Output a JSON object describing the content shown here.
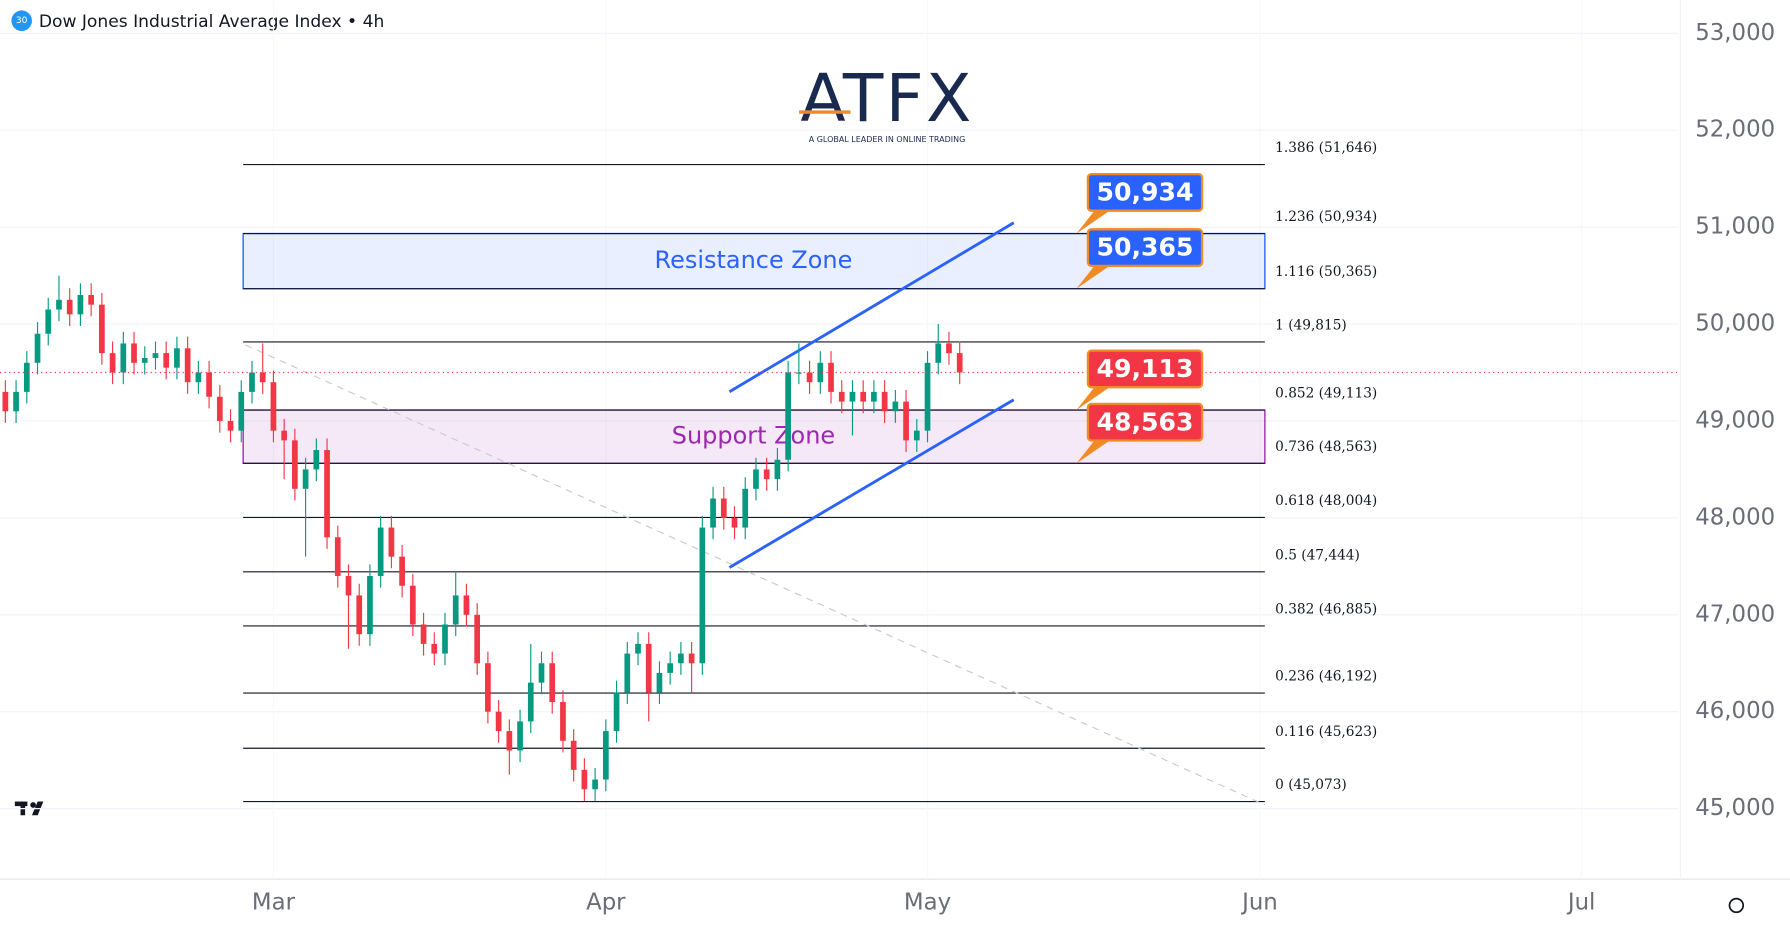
{
  "chart_data": {
    "type": "candlestick",
    "title": "Dow Jones Industrial Average Index • 4h",
    "badge": "30",
    "logo": "ATFX",
    "logo_tagline": "A GLOBAL LEADER IN ONLINE TRADING",
    "up_color": "#089981",
    "down_color": "#f23645",
    "xlim": [
      -25.5,
      131
    ],
    "xticks": [
      {
        "value": 0,
        "label": "Mar"
      },
      {
        "value": 31,
        "label": "Apr"
      },
      {
        "value": 61,
        "label": "May"
      },
      {
        "value": 92,
        "label": "Jun"
      },
      {
        "value": 122,
        "label": "Jul"
      }
    ],
    "ylim": [
      44272,
      53342
    ],
    "yticks": [
      {
        "value": 45000,
        "label": "45,000"
      },
      {
        "value": 46000,
        "label": "46,000"
      },
      {
        "value": 47000,
        "label": "47,000"
      },
      {
        "value": 48000,
        "label": "48,000"
      },
      {
        "value": 49000,
        "label": "49,000"
      },
      {
        "value": 50000,
        "label": "50,000"
      },
      {
        "value": 51000,
        "label": "51,000"
      },
      {
        "value": 52000,
        "label": "52,000"
      },
      {
        "value": 53000,
        "label": "53,000"
      }
    ],
    "grid": true,
    "x": [
      -25,
      -24,
      -23,
      -22,
      -21,
      -20,
      -19,
      -18,
      -17,
      -16,
      -15,
      -14,
      -13,
      -12,
      -11,
      -10,
      -9,
      -8,
      -7,
      -6,
      -5,
      -4,
      -3,
      -2,
      -1,
      0,
      1,
      2,
      3,
      4,
      5,
      6,
      7,
      8,
      9,
      10,
      11,
      12,
      13,
      14,
      15,
      16,
      17,
      18,
      19,
      20,
      21,
      22,
      23,
      24,
      25,
      26,
      27,
      28,
      29,
      30,
      31,
      32,
      33,
      34,
      35,
      36,
      37,
      38,
      39,
      40,
      41,
      42,
      43,
      44,
      45,
      46,
      47,
      48,
      49,
      50,
      51,
      52,
      53,
      54,
      55,
      56,
      57,
      58,
      59,
      60,
      61,
      62,
      63,
      64
    ],
    "open": [
      49300,
      49100,
      49300,
      49600,
      49900,
      50150,
      50250,
      50100,
      50300,
      50200,
      49700,
      49500,
      49800,
      49600,
      49650,
      49700,
      49550,
      49750,
      49400,
      49500,
      49250,
      49000,
      48900,
      49300,
      49500,
      49400,
      48900,
      48800,
      48300,
      48500,
      48700,
      47800,
      47400,
      47200,
      46800,
      47400,
      47900,
      47600,
      47300,
      46900,
      46700,
      46600,
      46900,
      47200,
      47000,
      46500,
      46000,
      45800,
      45600,
      45900,
      46300,
      46500,
      46100,
      45700,
      45400,
      45200,
      45300,
      45800,
      46200,
      46600,
      46700,
      46200,
      46400,
      46500,
      46600,
      46500,
      47900,
      48200,
      48000,
      47900,
      48300,
      48500,
      48400,
      48600,
      49500,
      49500,
      49400,
      49600,
      49300,
      49200,
      49300,
      49200,
      49300,
      49100,
      49200,
      48800,
      48900,
      49600,
      49800,
      49700
    ],
    "high": [
      49420,
      49420,
      49720,
      50020,
      50270,
      50500,
      50370,
      50420,
      50420,
      50320,
      49820,
      49920,
      49920,
      49770,
      49820,
      49820,
      49870,
      49870,
      49620,
      49620,
      49370,
      49120,
      49420,
      49620,
      49800,
      49520,
      49020,
      48920,
      48620,
      48820,
      48820,
      47920,
      47520,
      47320,
      47520,
      48020,
      48020,
      47720,
      47420,
      47020,
      46820,
      47020,
      47450,
      47320,
      47120,
      46620,
      46120,
      45920,
      46020,
      46700,
      46620,
      46620,
      46220,
      45820,
      45520,
      45420,
      45920,
      46320,
      46720,
      46820,
      46820,
      46520,
      46620,
      46720,
      46720,
      48020,
      48320,
      48320,
      48120,
      48420,
      48620,
      48620,
      48720,
      49620,
      49800,
      49620,
      49720,
      49720,
      49420,
      49420,
      49420,
      49420,
      49420,
      49320,
      49320,
      49020,
      49720,
      50000,
      49920,
      49820
    ],
    "low": [
      48980,
      48980,
      49180,
      49480,
      49780,
      50030,
      49980,
      49980,
      50080,
      49580,
      49380,
      49380,
      49480,
      49480,
      49530,
      49430,
      49430,
      49280,
      49280,
      49130,
      48880,
      48780,
      48780,
      49180,
      49280,
      48780,
      48400,
      48180,
      47600,
      48380,
      47680,
      47280,
      46650,
      46680,
      46680,
      47280,
      47480,
      47180,
      46780,
      46580,
      46480,
      46480,
      46780,
      46880,
      46380,
      45880,
      45680,
      45350,
      45480,
      45780,
      46180,
      45980,
      45580,
      45280,
      45080,
      45080,
      45180,
      45680,
      46080,
      46480,
      45900,
      46080,
      46280,
      46380,
      46200,
      46380,
      47780,
      47880,
      47780,
      47780,
      48180,
      48280,
      48280,
      48480,
      49380,
      49280,
      49280,
      49180,
      49080,
      48850,
      49080,
      49080,
      48980,
      48980,
      48680,
      48680,
      48780,
      49480,
      49580,
      49380
    ],
    "close": [
      49100,
      49300,
      49600,
      49900,
      50150,
      50250,
      50100,
      50300,
      50200,
      49700,
      49500,
      49800,
      49600,
      49650,
      49700,
      49550,
      49750,
      49400,
      49500,
      49250,
      49000,
      48900,
      49300,
      49500,
      49400,
      48900,
      48800,
      48300,
      48500,
      48700,
      47800,
      47400,
      47200,
      46800,
      47400,
      47900,
      47600,
      47300,
      46900,
      46700,
      46600,
      46900,
      47200,
      47000,
      46500,
      46000,
      45800,
      45600,
      45900,
      46300,
      46500,
      46100,
      45700,
      45400,
      45200,
      45300,
      45800,
      46200,
      46600,
      46700,
      46200,
      46400,
      46500,
      46600,
      46500,
      47900,
      48200,
      48000,
      47900,
      48300,
      48500,
      48400,
      48600,
      49500,
      49500,
      49400,
      49600,
      49300,
      49200,
      49300,
      49200,
      49300,
      49100,
      49200,
      48800,
      48900,
      49600,
      49800,
      49700,
      49500
    ],
    "fib_levels": [
      {
        "label": "1.386 (51,646)",
        "value": 51646
      },
      {
        "label": "1.236 (50,934)",
        "value": 50934
      },
      {
        "label": "1.116 (50,365)",
        "value": 50365
      },
      {
        "label": "1 (49,815)",
        "value": 49815
      },
      {
        "label": "0.852 (49,113)",
        "value": 49113
      },
      {
        "label": "0.736 (48,563)",
        "value": 48563
      },
      {
        "label": "0.618 (48,004)",
        "value": 48004
      },
      {
        "label": "0.5 (47,444)",
        "value": 47444
      },
      {
        "label": "0.382 (46,885)",
        "value": 46885
      },
      {
        "label": "0.236 (46,192)",
        "value": 46192
      },
      {
        "label": "0.116 (45,623)",
        "value": 45623
      },
      {
        "label": "0 (45,073)",
        "value": 45073
      }
    ],
    "zones": [
      {
        "label": "Resistance Zone",
        "low": 50365,
        "high": 50934,
        "color": "#2962ff"
      },
      {
        "label": "Support Zone",
        "low": 48563,
        "high": 49113,
        "color": "#9c27b0"
      }
    ],
    "price_tags": [
      {
        "value": 50934,
        "value_label": "50,934",
        "color": "#2962ff"
      },
      {
        "value": 50365,
        "value_label": "50,365",
        "color": "#2962ff"
      },
      {
        "value": 49113,
        "value_label": "49,113",
        "color": "#f23645"
      },
      {
        "value": 48563,
        "value_label": "48,563",
        "color": "#f23645"
      }
    ]
  }
}
